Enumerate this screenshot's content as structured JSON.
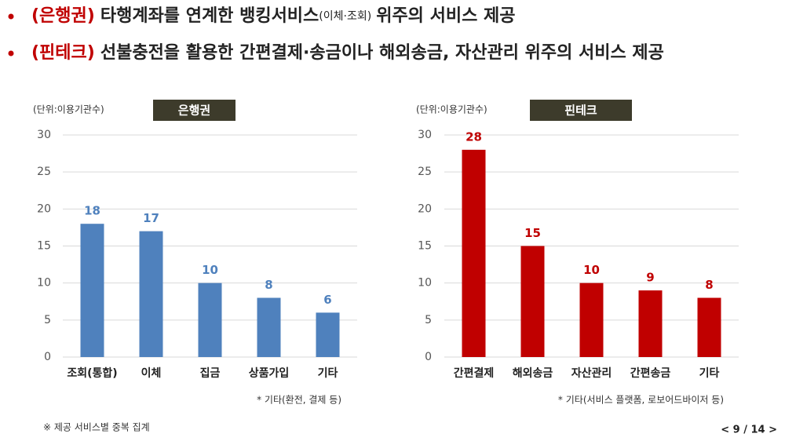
{
  "header": {
    "bullets": [
      {
        "highlight": "(은행권)",
        "text": "타행계좌를 연계한 뱅킹서비스",
        "small": "(이체·조회)",
        "text_end": "위주의 서비스 제공"
      },
      {
        "highlight": "(핀테크)",
        "text": "선불충전을 활용한 간편결제·송금이나 해외송금, 자산관리 위주의 서비스 제공"
      }
    ]
  },
  "chart_data": [
    {
      "type": "bar",
      "title": "은행권",
      "unit": "(단위:이용기관수)",
      "categories": [
        "조회(통합)",
        "이체",
        "집금",
        "상품가입",
        "기타"
      ],
      "values": [
        18,
        17,
        10,
        8,
        6
      ],
      "color": "#4f81bd",
      "ylim": [
        0,
        30
      ],
      "yticks": [
        0,
        5,
        10,
        15,
        20,
        25,
        30
      ],
      "grid": true,
      "note": "* 기타(환전, 결제 등)"
    },
    {
      "type": "bar",
      "title": "핀테크",
      "unit": "(단위:이용기관수)",
      "categories": [
        "간편결제",
        "해외송금",
        "자산관리",
        "간편송금",
        "기타"
      ],
      "values": [
        28,
        15,
        10,
        9,
        8
      ],
      "color": "#c00000",
      "ylim": [
        0,
        30
      ],
      "yticks": [
        0,
        5,
        10,
        15,
        20,
        25,
        30
      ],
      "grid": true,
      "note": "* 기타(서비스 플랫폼, 로보어드바이저 등)"
    }
  ],
  "footnote": "※ 제공 서비스별 중복 집계",
  "page_number": "< 9 / 14 >"
}
